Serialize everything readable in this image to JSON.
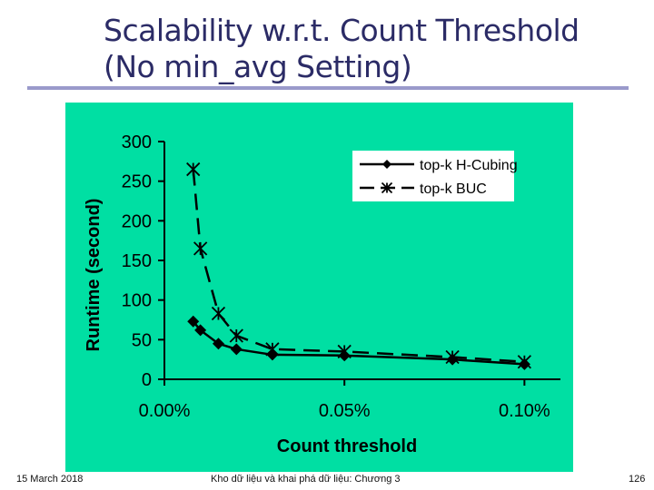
{
  "slide": {
    "title_line1": "Scalability w.r.t. Count Threshold",
    "title_line2": "(No min_avg Setting)"
  },
  "footer": {
    "date": "15 March 2018",
    "course": "Kho dữ liệu và khai phá dữ liệu: Chương 3",
    "page": "126"
  },
  "colors": {
    "panel": "#00dfa3",
    "title": "#2b2b66",
    "rule": "#9a9acb",
    "ink": "#000000",
    "legend_bg": "#ffffff"
  },
  "chart_data": {
    "type": "line",
    "title": "",
    "xlabel": "Count threshold",
    "ylabel": "Runtime (second)",
    "xlim": [
      0,
      0.11
    ],
    "ylim": [
      0,
      300
    ],
    "x_ticks": [
      0,
      0.05,
      0.1
    ],
    "x_tick_labels": [
      "0.00%",
      "0.05%",
      "0.10%"
    ],
    "y_ticks": [
      0,
      50,
      100,
      150,
      200,
      250,
      300
    ],
    "y_tick_labels": [
      "0",
      "50",
      "100",
      "150",
      "200",
      "250",
      "300"
    ],
    "grid": false,
    "legend_position": "top-right",
    "series": [
      {
        "name": "top-k H-Cubing",
        "marker": "diamond",
        "line": "solid",
        "x": [
          0.008,
          0.01,
          0.015,
          0.02,
          0.03,
          0.05,
          0.08,
          0.1
        ],
        "y": [
          73,
          62,
          45,
          38,
          31,
          30,
          25,
          19
        ]
      },
      {
        "name": "top-k BUC",
        "marker": "star",
        "line": "dashed",
        "x": [
          0.008,
          0.01,
          0.015,
          0.02,
          0.03,
          0.05,
          0.08,
          0.1
        ],
        "y": [
          265,
          165,
          83,
          55,
          38,
          35,
          28,
          22
        ]
      }
    ]
  }
}
